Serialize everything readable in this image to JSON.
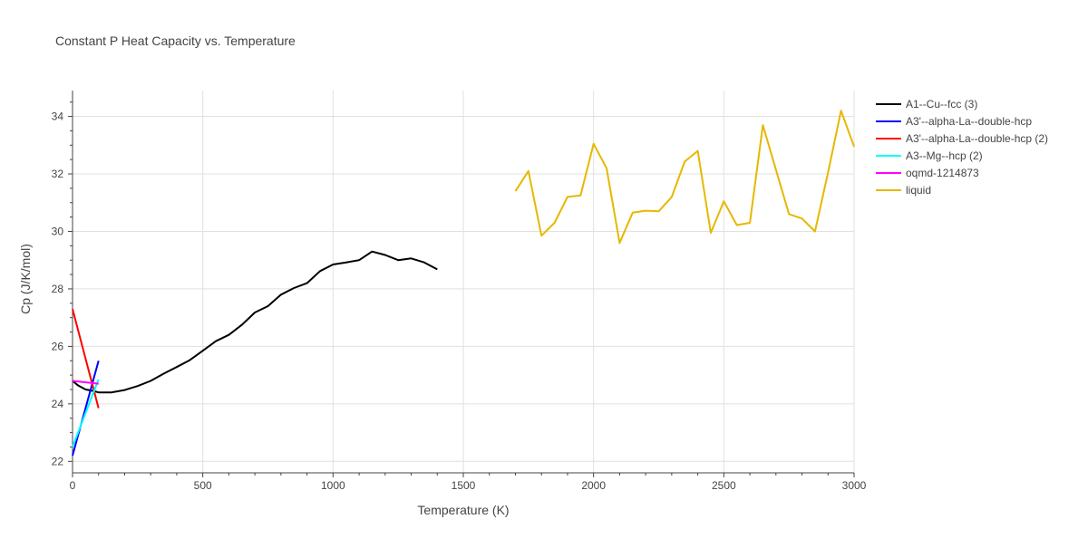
{
  "chart_data": {
    "type": "line",
    "title": "Constant P Heat Capacity vs. Temperature",
    "xlabel": "Temperature (K)",
    "ylabel": "Cp (J/K/mol)",
    "xlim": [
      0,
      3000
    ],
    "ylim": [
      21.6,
      34.9
    ],
    "xticks": [
      0,
      500,
      1000,
      1500,
      2000,
      2500,
      3000
    ],
    "xtick_labels": [
      "0",
      "500",
      "1000",
      "1500",
      "2000",
      "2500",
      "3000"
    ],
    "yticks": [
      22,
      24,
      26,
      28,
      30,
      32,
      34
    ],
    "ytick_labels": [
      "22",
      "24",
      "26",
      "28",
      "30",
      "32",
      "34"
    ],
    "grid": true,
    "legend_position": "right",
    "series": [
      {
        "name": "A1--Cu--fcc (3)",
        "color": "#000000",
        "x": [
          0,
          20,
          50,
          80,
          100,
          150,
          200,
          250,
          300,
          350,
          400,
          450,
          500,
          550,
          600,
          650,
          700,
          750,
          800,
          850,
          900,
          950,
          1000,
          1050,
          1100,
          1150,
          1200,
          1250,
          1300,
          1350,
          1400
        ],
        "y": [
          24.8,
          24.65,
          24.5,
          24.45,
          24.4,
          24.4,
          24.48,
          24.62,
          24.8,
          25.05,
          25.28,
          25.52,
          25.85,
          26.18,
          26.4,
          26.75,
          27.18,
          27.4,
          27.8,
          28.03,
          28.2,
          28.62,
          28.85,
          28.92,
          29.0,
          29.3,
          29.18,
          29.0,
          29.06,
          28.92,
          28.68
        ]
      },
      {
        "name": "A3'--alpha-La--double-hcp",
        "color": "#0000ff",
        "x": [
          0,
          100
        ],
        "y": [
          22.2,
          25.5
        ]
      },
      {
        "name": "A3'--alpha-La--double-hcp (2)",
        "color": "#ff0000",
        "x": [
          0,
          100
        ],
        "y": [
          27.3,
          23.85
        ]
      },
      {
        "name": "A3--Mg--hcp (2)",
        "color": "#00ffff",
        "x": [
          0,
          100
        ],
        "y": [
          22.5,
          24.85
        ]
      },
      {
        "name": "oqmd-1214873",
        "color": "#ff00ff",
        "x": [
          0,
          100
        ],
        "y": [
          24.8,
          24.7
        ]
      },
      {
        "name": "liquid",
        "color": "#e6b800",
        "x": [
          1700,
          1750,
          1800,
          1850,
          1900,
          1950,
          2000,
          2050,
          2100,
          2150,
          2200,
          2250,
          2300,
          2350,
          2400,
          2450,
          2500,
          2550,
          2600,
          2650,
          2700,
          2750,
          2800,
          2850,
          2900,
          2950,
          3000
        ],
        "y": [
          31.4,
          32.1,
          29.85,
          30.3,
          31.2,
          31.25,
          33.05,
          32.2,
          29.6,
          30.65,
          30.72,
          30.7,
          31.2,
          32.43,
          32.8,
          29.95,
          31.05,
          30.22,
          30.3,
          33.7,
          32.15,
          30.6,
          30.45,
          30.0,
          32.05,
          34.2,
          32.95
        ]
      }
    ]
  }
}
